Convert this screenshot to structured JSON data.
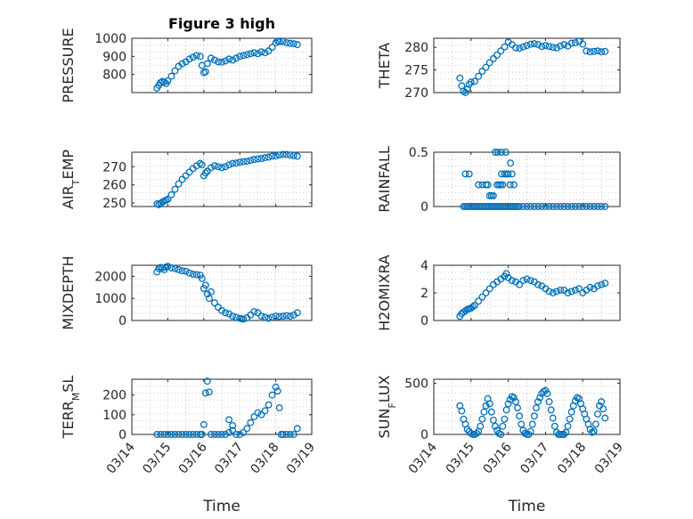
{
  "figure_title": "Figure 3 high",
  "x_axis_label": "Time",
  "x_tick_labels": [
    "03/14",
    "03/15",
    "03/16",
    "03/17",
    "03/18",
    "03/19"
  ],
  "marker_color": "#0072BD",
  "chart_data": [
    {
      "id": "pressure",
      "type": "scatter",
      "title": "Figure 3 high",
      "ylabel": "PRESSURE",
      "ylabel_sub": "",
      "xlim": [
        0,
        5
      ],
      "ylim": [
        700,
        1000
      ],
      "yticks": [
        800,
        900,
        1000
      ],
      "ytick_labels": [
        "800",
        "900",
        "1000"
      ],
      "xlabel": "",
      "x": [
        0.7,
        0.75,
        0.8,
        0.85,
        0.9,
        0.95,
        1.0,
        1.1,
        1.2,
        1.3,
        1.4,
        1.5,
        1.6,
        1.7,
        1.8,
        1.9,
        1.95,
        2.0,
        2.05,
        2.1,
        2.2,
        2.3,
        2.4,
        2.5,
        2.6,
        2.7,
        2.8,
        2.9,
        3.0,
        3.1,
        3.2,
        3.3,
        3.4,
        3.5,
        3.6,
        3.7,
        3.8,
        3.9,
        4.0,
        4.05,
        4.1,
        4.2,
        4.3,
        4.4,
        4.5,
        4.6
      ],
      "y": [
        725,
        740,
        755,
        762,
        758,
        750,
        765,
        790,
        820,
        845,
        860,
        870,
        885,
        895,
        905,
        900,
        850,
        810,
        815,
        860,
        890,
        880,
        870,
        868,
        875,
        885,
        880,
        890,
        900,
        905,
        910,
        915,
        920,
        915,
        925,
        920,
        930,
        950,
        975,
        985,
        980,
        982,
        975,
        972,
        970,
        965
      ]
    },
    {
      "id": "theta",
      "type": "scatter",
      "title": "",
      "ylabel": "THETA",
      "ylabel_sub": "",
      "xlim": [
        0,
        5
      ],
      "ylim": [
        270,
        282
      ],
      "yticks": [
        270,
        275,
        280
      ],
      "ytick_labels": [
        "270",
        "275",
        "280"
      ],
      "xlabel": "",
      "x": [
        0.7,
        0.75,
        0.8,
        0.85,
        0.9,
        0.95,
        1.0,
        1.1,
        1.2,
        1.3,
        1.4,
        1.5,
        1.6,
        1.7,
        1.8,
        1.9,
        2.0,
        2.1,
        2.2,
        2.3,
        2.4,
        2.5,
        2.6,
        2.7,
        2.8,
        2.9,
        3.0,
        3.1,
        3.2,
        3.3,
        3.4,
        3.5,
        3.6,
        3.7,
        3.8,
        3.9,
        4.0,
        4.1,
        4.2,
        4.3,
        4.4,
        4.5,
        4.6
      ],
      "y": [
        273.2,
        271.5,
        270.3,
        270.0,
        270.8,
        271.8,
        272.3,
        272.5,
        273.6,
        274.7,
        275.6,
        276.6,
        277.5,
        278.3,
        279.2,
        280.1,
        281.2,
        280.6,
        279.9,
        279.8,
        280.1,
        280.4,
        280.7,
        280.8,
        280.6,
        280.2,
        280.4,
        280.2,
        280.0,
        279.9,
        280.3,
        280.6,
        280.3,
        280.9,
        281.0,
        281.3,
        280.7,
        279.2,
        279.0,
        279.1,
        279.2,
        279.0,
        279.1
      ]
    },
    {
      "id": "air_temp",
      "type": "scatter",
      "title": "",
      "ylabel": "AIR",
      "ylabel_sub": "T",
      "ylabel_suffix": "EMP",
      "xlim": [
        0,
        5
      ],
      "ylim": [
        248,
        278
      ],
      "yticks": [
        250,
        260,
        270
      ],
      "ytick_labels": [
        "250",
        "260",
        "270"
      ],
      "xlabel": "",
      "x": [
        0.7,
        0.75,
        0.8,
        0.85,
        0.9,
        0.95,
        1.0,
        1.1,
        1.2,
        1.3,
        1.4,
        1.5,
        1.6,
        1.7,
        1.8,
        1.9,
        1.95,
        2.0,
        2.05,
        2.1,
        2.2,
        2.3,
        2.4,
        2.5,
        2.6,
        2.7,
        2.8,
        2.9,
        3.0,
        3.1,
        3.2,
        3.3,
        3.4,
        3.5,
        3.6,
        3.7,
        3.8,
        3.9,
        4.0,
        4.1,
        4.2,
        4.3,
        4.4,
        4.5,
        4.6
      ],
      "y": [
        249.5,
        249.0,
        249.8,
        250.5,
        251.0,
        251.5,
        252.0,
        254.5,
        257.5,
        260.5,
        263.0,
        265.0,
        267.0,
        269.0,
        270.5,
        271.8,
        271.0,
        265.0,
        266.5,
        267.5,
        269.5,
        270.5,
        270.0,
        269.5,
        270.0,
        271.0,
        271.8,
        272.0,
        272.5,
        272.8,
        273.0,
        273.5,
        274.0,
        274.3,
        274.5,
        275.0,
        275.3,
        275.8,
        276.0,
        276.5,
        276.8,
        276.8,
        276.5,
        276.2,
        275.8
      ]
    },
    {
      "id": "rainfall",
      "type": "scatter",
      "title": "",
      "ylabel": "RAINFALL",
      "ylabel_sub": "",
      "xlim": [
        0,
        5
      ],
      "ylim": [
        0,
        0.5
      ],
      "yticks": [
        0,
        0.5
      ],
      "ytick_labels": [
        "0",
        "0.5"
      ],
      "xlabel": "",
      "x": [
        0.8,
        0.85,
        0.9,
        0.95,
        1.0,
        1.05,
        1.1,
        1.15,
        1.2,
        1.25,
        1.3,
        1.35,
        1.4,
        1.45,
        1.5,
        1.55,
        1.6,
        1.65,
        1.7,
        1.75,
        1.8,
        1.85,
        1.9,
        1.95,
        2.0,
        2.05,
        2.1,
        2.15,
        2.2,
        2.25,
        2.3,
        2.4,
        2.5,
        2.6,
        2.7,
        2.8,
        2.9,
        3.0,
        3.1,
        3.2,
        3.3,
        3.4,
        3.5,
        3.6,
        3.7,
        3.8,
        3.9,
        4.0,
        4.1,
        4.2,
        4.3,
        4.4,
        4.5,
        4.6,
        0.85,
        0.95,
        1.2,
        1.3,
        1.4,
        1.45,
        1.5,
        1.55,
        1.6,
        1.7,
        1.75,
        1.8,
        1.82,
        1.85,
        1.9,
        1.95,
        2.0,
        2.05,
        2.1,
        2.15,
        1.65,
        1.72,
        1.82,
        1.93,
        2.06
      ],
      "y": [
        0,
        0,
        0,
        0,
        0,
        0,
        0,
        0,
        0,
        0,
        0,
        0,
        0,
        0,
        0,
        0,
        0,
        0,
        0,
        0,
        0,
        0,
        0,
        0,
        0,
        0,
        0,
        0,
        0,
        0,
        0,
        0,
        0,
        0,
        0,
        0,
        0,
        0,
        0,
        0,
        0,
        0,
        0,
        0,
        0,
        0,
        0,
        0,
        0,
        0,
        0,
        0,
        0,
        0,
        0.3,
        0.3,
        0.2,
        0.2,
        0.2,
        0.2,
        0.1,
        0.1,
        0.1,
        0.2,
        0.2,
        0.2,
        0.3,
        0.2,
        0.3,
        0.3,
        0.3,
        0.2,
        0.3,
        0.2,
        0.5,
        0.5,
        0.5,
        0.5,
        0.4
      ]
    },
    {
      "id": "mixdepth",
      "type": "scatter",
      "title": "",
      "ylabel": "MIXDEPTH",
      "ylabel_sub": "",
      "xlim": [
        0,
        5
      ],
      "ylim": [
        0,
        2500
      ],
      "yticks": [
        0,
        1000,
        2000
      ],
      "ytick_labels": [
        "0",
        "1000",
        "2000"
      ],
      "xlabel": "",
      "x": [
        0.7,
        0.75,
        0.8,
        0.85,
        0.9,
        0.95,
        1.0,
        1.1,
        1.2,
        1.3,
        1.4,
        1.5,
        1.6,
        1.7,
        1.8,
        1.9,
        1.95,
        2.0,
        2.05,
        2.1,
        2.15,
        2.2,
        2.3,
        2.4,
        2.5,
        2.6,
        2.7,
        2.8,
        2.9,
        3.0,
        3.05,
        3.1,
        3.2,
        3.3,
        3.4,
        3.5,
        3.6,
        3.7,
        3.8,
        3.9,
        4.0,
        4.1,
        4.2,
        4.3,
        4.4,
        4.5,
        4.6
      ],
      "y": [
        2200,
        2350,
        2400,
        2380,
        2300,
        2420,
        2450,
        2380,
        2350,
        2300,
        2250,
        2230,
        2150,
        2100,
        2080,
        2050,
        1900,
        1450,
        1600,
        1200,
        1000,
        1300,
        800,
        600,
        450,
        350,
        300,
        200,
        150,
        100,
        80,
        60,
        120,
        250,
        400,
        350,
        200,
        150,
        100,
        150,
        200,
        180,
        200,
        220,
        200,
        250,
        350
      ]
    },
    {
      "id": "h2omixra",
      "type": "scatter",
      "title": "",
      "ylabel": "H2OMIXRA",
      "ylabel_sub": "",
      "xlim": [
        0,
        5
      ],
      "ylim": [
        0,
        4
      ],
      "yticks": [
        0,
        2,
        4
      ],
      "ytick_labels": [
        "0",
        "2",
        "4"
      ],
      "xlabel": "",
      "x": [
        0.7,
        0.75,
        0.8,
        0.85,
        0.9,
        0.95,
        1.0,
        1.05,
        1.1,
        1.2,
        1.3,
        1.4,
        1.5,
        1.6,
        1.7,
        1.8,
        1.9,
        1.95,
        2.0,
        2.1,
        2.2,
        2.3,
        2.4,
        2.5,
        2.6,
        2.7,
        2.8,
        2.9,
        3.0,
        3.1,
        3.2,
        3.3,
        3.4,
        3.5,
        3.6,
        3.7,
        3.8,
        3.9,
        4.0,
        4.1,
        4.2,
        4.3,
        4.4,
        4.5,
        4.6
      ],
      "y": [
        0.3,
        0.5,
        0.6,
        0.7,
        0.8,
        0.85,
        0.9,
        1.0,
        1.1,
        1.4,
        1.7,
        2.0,
        2.3,
        2.6,
        2.8,
        3.0,
        3.2,
        3.4,
        3.1,
        2.9,
        2.8,
        2.6,
        2.9,
        3.0,
        2.9,
        2.8,
        2.6,
        2.5,
        2.3,
        2.1,
        2.0,
        2.1,
        2.2,
        2.2,
        2.0,
        2.1,
        2.2,
        2.3,
        2.0,
        2.2,
        2.4,
        2.3,
        2.5,
        2.6,
        2.7
      ]
    },
    {
      "id": "terr_msl",
      "type": "scatter",
      "title": "",
      "ylabel": "TERR",
      "ylabel_sub": "M",
      "ylabel_suffix": "SL",
      "xlim": [
        0,
        5
      ],
      "ylim": [
        0,
        280
      ],
      "yticks": [
        0,
        100,
        200
      ],
      "ytick_labels": [
        "0",
        "100",
        "200"
      ],
      "xlabel": "Time",
      "x": [
        0.7,
        0.8,
        0.9,
        1.0,
        1.1,
        1.2,
        1.3,
        1.4,
        1.5,
        1.6,
        1.7,
        1.8,
        1.9,
        1.95,
        2.0,
        2.05,
        2.1,
        2.15,
        2.2,
        2.3,
        2.4,
        2.5,
        2.6,
        2.7,
        2.8,
        2.9,
        3.0,
        3.1,
        3.2,
        3.3,
        3.4,
        3.5,
        3.6,
        3.7,
        3.8,
        3.9,
        4.0,
        4.05,
        4.1,
        4.15,
        4.2,
        4.3,
        4.4,
        4.5,
        4.6,
        2.7,
        2.8
      ],
      "y": [
        0,
        0,
        0,
        0,
        0,
        0,
        0,
        0,
        0,
        0,
        0,
        0,
        0,
        0,
        50,
        210,
        270,
        215,
        0,
        0,
        0,
        0,
        0,
        10,
        20,
        0,
        0,
        10,
        30,
        60,
        90,
        110,
        100,
        120,
        150,
        200,
        240,
        220,
        135,
        0,
        0,
        0,
        0,
        0,
        30,
        75,
        45
      ]
    },
    {
      "id": "sun_flux",
      "type": "scatter",
      "title": "",
      "ylabel": "SUN",
      "ylabel_sub": "F",
      "ylabel_suffix": "LUX",
      "xlim": [
        0,
        5
      ],
      "ylim": [
        0,
        540
      ],
      "yticks": [
        0,
        500
      ],
      "ytick_labels": [
        "0",
        "500"
      ],
      "xlabel": "Time",
      "x": [
        0.7,
        0.75,
        0.8,
        0.85,
        0.9,
        0.95,
        1.0,
        1.05,
        1.1,
        1.15,
        1.2,
        1.25,
        1.3,
        1.35,
        1.4,
        1.45,
        1.5,
        1.55,
        1.6,
        1.65,
        1.7,
        1.75,
        1.8,
        1.85,
        1.9,
        1.95,
        2.0,
        2.05,
        2.1,
        2.15,
        2.2,
        2.25,
        2.3,
        2.35,
        2.4,
        2.45,
        2.5,
        2.55,
        2.6,
        2.65,
        2.7,
        2.75,
        2.8,
        2.85,
        2.9,
        2.95,
        3.0,
        3.05,
        3.1,
        3.15,
        3.2,
        3.25,
        3.3,
        3.35,
        3.4,
        3.45,
        3.5,
        3.55,
        3.6,
        3.65,
        3.7,
        3.75,
        3.8,
        3.85,
        3.9,
        3.95,
        4.0,
        4.05,
        4.1,
        4.15,
        4.2,
        4.25,
        4.3,
        4.35,
        4.4,
        4.45,
        4.5,
        4.55,
        4.6
      ],
      "y": [
        280,
        230,
        150,
        100,
        50,
        30,
        10,
        0,
        0,
        10,
        30,
        80,
        150,
        220,
        280,
        350,
        300,
        220,
        140,
        80,
        40,
        10,
        0,
        80,
        150,
        240,
        300,
        340,
        370,
        360,
        320,
        260,
        180,
        100,
        40,
        10,
        0,
        0,
        30,
        100,
        180,
        260,
        320,
        360,
        400,
        420,
        430,
        400,
        320,
        240,
        160,
        80,
        20,
        0,
        0,
        0,
        0,
        20,
        80,
        150,
        220,
        280,
        330,
        360,
        350,
        300,
        250,
        200,
        150,
        100,
        50,
        20,
        30,
        100,
        200,
        280,
        320,
        250,
        160
      ]
    }
  ]
}
